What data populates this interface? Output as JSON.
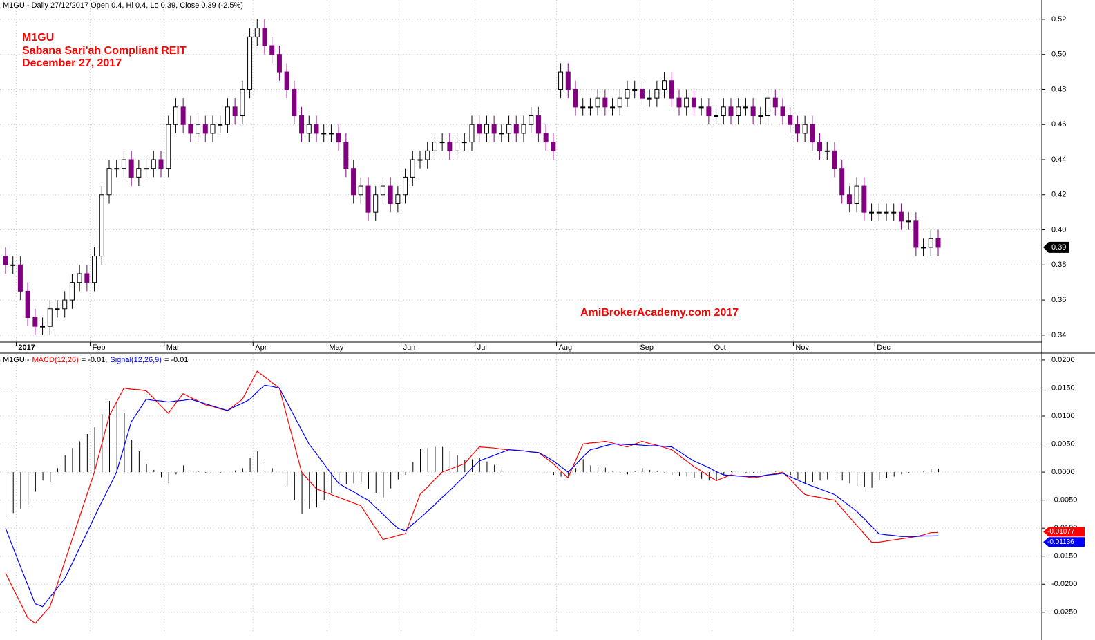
{
  "chart_data": [
    {
      "type": "candlestick",
      "header": "M1GU - Daily 27/12/2017 Open 0.4, Hi 0.4, Lo 0.39, Close 0.39 (-2.5%)",
      "title_lines": [
        "M1GU",
        "Sabana Sari'ah Compliant REIT",
        "December 27, 2017"
      ],
      "annotation": "AmiBrokerAcademy.com  2017",
      "up_color": "#ffffff",
      "down_color": "#800080",
      "grid": true,
      "ylim": [
        0.336,
        0.531
      ],
      "yticks": [
        0.34,
        0.36,
        0.38,
        {
          "value": 0.4,
          "label": "0.40"
        },
        0.42,
        0.44,
        0.46,
        0.48,
        {
          "value": 0.5,
          "label": "0.50"
        },
        0.52
      ],
      "categories": [
        null,
        null,
        "2017",
        null,
        null,
        null,
        null,
        null,
        null,
        null,
        null,
        null,
        "Feb",
        null,
        null,
        null,
        null,
        null,
        null,
        null,
        null,
        null,
        "Mar",
        null,
        null,
        null,
        null,
        null,
        null,
        null,
        null,
        null,
        null,
        null,
        "Apr",
        null,
        null,
        null,
        null,
        null,
        null,
        null,
        null,
        null,
        "May",
        null,
        null,
        null,
        null,
        null,
        null,
        null,
        null,
        null,
        "Jun",
        null,
        null,
        null,
        null,
        null,
        null,
        null,
        null,
        null,
        "Jul",
        null,
        null,
        null,
        null,
        null,
        null,
        null,
        null,
        null,
        null,
        "Aug",
        null,
        null,
        null,
        null,
        null,
        null,
        null,
        null,
        null,
        null,
        "Sep",
        null,
        null,
        null,
        null,
        null,
        null,
        null,
        null,
        null,
        "Oct",
        null,
        null,
        null,
        null,
        null,
        null,
        null,
        null,
        null,
        null,
        "Nov",
        null,
        null,
        null,
        null,
        null,
        null,
        null,
        null,
        null,
        null,
        "Dec",
        null,
        null,
        null,
        null,
        null,
        null,
        null,
        null
      ],
      "open": [
        0.385,
        0.38,
        0.38,
        0.365,
        0.35,
        0.345,
        0.345,
        0.355,
        0.355,
        0.36,
        0.37,
        0.375,
        0.37,
        0.385,
        0.42,
        0.435,
        0.435,
        0.44,
        0.43,
        0.435,
        0.435,
        0.44,
        0.435,
        0.46,
        0.47,
        0.46,
        0.455,
        0.46,
        0.455,
        0.46,
        0.46,
        0.47,
        0.465,
        0.48,
        0.51,
        0.515,
        0.505,
        0.5,
        0.49,
        0.48,
        0.465,
        0.455,
        0.46,
        0.455,
        0.455,
        0.455,
        0.45,
        0.435,
        0.42,
        0.425,
        0.41,
        0.42,
        0.425,
        0.415,
        0.42,
        0.43,
        0.44,
        0.44,
        0.445,
        0.45,
        0.45,
        0.445,
        0.45,
        0.45,
        0.46,
        0.455,
        0.46,
        0.455,
        0.455,
        0.46,
        0.455,
        0.46,
        0.465,
        0.455,
        0.45,
        0.48,
        0.49,
        0.48,
        0.47,
        0.47,
        0.47,
        0.475,
        0.47,
        0.47,
        0.475,
        0.48,
        0.48,
        0.475,
        0.475,
        0.48,
        0.485,
        0.475,
        0.47,
        0.475,
        0.47,
        0.47,
        0.465,
        0.465,
        0.47,
        0.465,
        0.47,
        0.47,
        0.465,
        0.465,
        0.475,
        0.47,
        0.465,
        0.46,
        0.455,
        0.46,
        0.45,
        0.445,
        0.445,
        0.435,
        0.42,
        0.415,
        0.425,
        0.41,
        0.41,
        0.41,
        0.41,
        0.41,
        0.405,
        0.405,
        0.39,
        0.39,
        0.395
      ],
      "high": [
        0.39,
        0.385,
        0.385,
        0.37,
        0.355,
        0.35,
        0.36,
        0.36,
        0.365,
        0.375,
        0.38,
        0.38,
        0.39,
        0.425,
        0.44,
        0.44,
        0.445,
        0.445,
        0.44,
        0.44,
        0.445,
        0.445,
        0.465,
        0.475,
        0.475,
        0.465,
        0.465,
        0.465,
        0.465,
        0.465,
        0.475,
        0.475,
        0.485,
        0.515,
        0.52,
        0.52,
        0.51,
        0.505,
        0.495,
        0.485,
        0.47,
        0.465,
        0.465,
        0.46,
        0.46,
        0.46,
        0.455,
        0.44,
        0.43,
        0.43,
        0.425,
        0.43,
        0.43,
        0.425,
        0.435,
        0.445,
        0.445,
        0.45,
        0.455,
        0.455,
        0.455,
        0.455,
        0.455,
        0.465,
        0.465,
        0.465,
        0.465,
        0.46,
        0.465,
        0.465,
        0.465,
        0.47,
        0.47,
        0.46,
        0.455,
        0.495,
        0.495,
        0.485,
        0.475,
        0.475,
        0.48,
        0.48,
        0.475,
        0.48,
        0.485,
        0.485,
        0.485,
        0.48,
        0.485,
        0.49,
        0.49,
        0.48,
        0.48,
        0.48,
        0.475,
        0.475,
        0.47,
        0.475,
        0.475,
        0.475,
        0.475,
        0.475,
        0.47,
        0.48,
        0.48,
        0.475,
        0.47,
        0.465,
        0.465,
        0.465,
        0.455,
        0.45,
        0.45,
        0.44,
        0.425,
        0.43,
        0.43,
        0.415,
        0.415,
        0.415,
        0.415,
        0.415,
        0.41,
        0.41,
        0.395,
        0.4,
        0.4
      ],
      "low": [
        0.375,
        0.375,
        0.36,
        0.345,
        0.34,
        0.34,
        0.34,
        0.35,
        0.35,
        0.355,
        0.365,
        0.365,
        0.365,
        0.38,
        0.415,
        0.43,
        0.43,
        0.425,
        0.425,
        0.43,
        0.43,
        0.43,
        0.43,
        0.455,
        0.455,
        0.45,
        0.45,
        0.45,
        0.45,
        0.455,
        0.455,
        0.46,
        0.46,
        0.475,
        0.505,
        0.5,
        0.495,
        0.485,
        0.475,
        0.46,
        0.45,
        0.45,
        0.45,
        0.45,
        0.45,
        0.445,
        0.43,
        0.415,
        0.415,
        0.405,
        0.405,
        0.415,
        0.41,
        0.41,
        0.415,
        0.425,
        0.435,
        0.435,
        0.44,
        0.445,
        0.44,
        0.44,
        0.445,
        0.445,
        0.45,
        0.45,
        0.45,
        0.45,
        0.45,
        0.45,
        0.45,
        0.455,
        0.45,
        0.445,
        0.44,
        0.475,
        0.475,
        0.465,
        0.465,
        0.465,
        0.465,
        0.465,
        0.465,
        0.465,
        0.47,
        0.475,
        0.47,
        0.47,
        0.47,
        0.475,
        0.47,
        0.465,
        0.465,
        0.465,
        0.465,
        0.46,
        0.46,
        0.46,
        0.46,
        0.46,
        0.465,
        0.46,
        0.46,
        0.46,
        0.465,
        0.46,
        0.455,
        0.45,
        0.45,
        0.445,
        0.44,
        0.44,
        0.43,
        0.415,
        0.41,
        0.41,
        0.405,
        0.405,
        0.405,
        0.405,
        0.405,
        0.4,
        0.4,
        0.385,
        0.385,
        0.385,
        0.385
      ],
      "close": [
        0.38,
        0.38,
        0.365,
        0.35,
        0.345,
        0.345,
        0.355,
        0.355,
        0.36,
        0.37,
        0.375,
        0.37,
        0.385,
        0.42,
        0.435,
        0.435,
        0.44,
        0.43,
        0.435,
        0.435,
        0.44,
        0.435,
        0.46,
        0.47,
        0.46,
        0.455,
        0.46,
        0.455,
        0.46,
        0.46,
        0.47,
        0.465,
        0.48,
        0.51,
        0.515,
        0.505,
        0.5,
        0.49,
        0.48,
        0.465,
        0.455,
        0.46,
        0.455,
        0.455,
        0.455,
        0.45,
        0.435,
        0.42,
        0.425,
        0.41,
        0.42,
        0.425,
        0.415,
        0.42,
        0.43,
        0.44,
        0.44,
        0.445,
        0.45,
        0.45,
        0.445,
        0.45,
        0.45,
        0.46,
        0.455,
        0.46,
        0.455,
        0.455,
        0.46,
        0.455,
        0.46,
        0.465,
        0.455,
        0.45,
        0.445,
        0.49,
        0.48,
        0.47,
        0.47,
        0.47,
        0.475,
        0.47,
        0.47,
        0.475,
        0.48,
        0.48,
        0.475,
        0.475,
        0.48,
        0.485,
        0.475,
        0.47,
        0.475,
        0.47,
        0.47,
        0.465,
        0.465,
        0.47,
        0.465,
        0.47,
        0.47,
        0.465,
        0.465,
        0.475,
        0.47,
        0.465,
        0.46,
        0.455,
        0.46,
        0.45,
        0.445,
        0.445,
        0.435,
        0.42,
        0.415,
        0.425,
        0.41,
        0.41,
        0.41,
        0.41,
        0.41,
        0.405,
        0.405,
        0.39,
        0.39,
        0.395,
        0.39
      ]
    },
    {
      "type": "line",
      "header_prefix": "M1GU -",
      "macd_text": "= -0.01,",
      "signal_text": "= -0.01",
      "grid": true,
      "ylim": [
        -0.0286,
        0.0211
      ],
      "yticks": [
        {
          "value": -0.025,
          "label": "-0.0250"
        },
        {
          "value": -0.02,
          "label": "-0.0200"
        },
        {
          "value": -0.015,
          "label": "-0.0150"
        },
        {
          "value": -0.01,
          "label": "-0.0100"
        },
        {
          "value": -0.005,
          "label": "-0.0050"
        },
        {
          "value": 0,
          "label": "0.0000"
        },
        {
          "value": 0.005,
          "label": "0.0050"
        },
        {
          "value": 0.01,
          "label": "0.0100"
        },
        {
          "value": 0.015,
          "label": "0.0150"
        },
        {
          "value": 0.02,
          "label": "0.0200"
        }
      ],
      "series": [
        {
          "name": "MACD(12,26)",
          "color": "#ff0000",
          "values": [
            -0.018,
            -0.0207,
            -0.0233,
            -0.026,
            -0.027,
            -0.0255,
            -0.024,
            -0.02,
            -0.016,
            -0.012,
            -0.008,
            -0.004,
            0.0,
            0.005,
            0.01,
            0.0125,
            0.015,
            0.0148,
            0.0147,
            0.0145,
            0.0132,
            0.0118,
            0.0105,
            0.0123,
            0.014,
            0.0133,
            0.0127,
            0.012,
            0.0117,
            0.0113,
            0.011,
            0.012,
            0.013,
            0.0155,
            0.018,
            0.017,
            0.016,
            0.015,
            0.01,
            0.005,
            0.0,
            -0.0015,
            -0.003,
            -0.0035,
            -0.004,
            -0.0045,
            -0.005,
            -0.0055,
            -0.006,
            -0.008,
            -0.01,
            -0.012,
            -0.0117,
            -0.0113,
            -0.011,
            -0.0075,
            -0.004,
            -0.0027,
            -0.0013,
            0.0,
            0.0005,
            0.001,
            0.0015,
            0.003,
            0.0045,
            0.0044,
            0.0043,
            0.0041,
            0.004,
            0.0039,
            0.0038,
            0.0036,
            0.0035,
            0.0025,
            0.0015,
            0.0002,
            -0.001,
            0.002,
            0.005,
            0.0052,
            0.0053,
            0.0055,
            0.0052,
            0.0048,
            0.0045,
            0.005,
            0.0055,
            0.0051,
            0.0048,
            0.0044,
            0.004,
            0.003,
            0.002,
            0.001,
            0.0002,
            -0.0007,
            -0.0015,
            -0.001,
            -0.0005,
            -0.0007,
            -0.0008,
            -0.001,
            -0.0008,
            -0.0005,
            -0.0003,
            0.0,
            -0.0013,
            -0.0027,
            -0.004,
            -0.0043,
            -0.0045,
            -0.0048,
            -0.005,
            -0.0065,
            -0.008,
            -0.0095,
            -0.011,
            -0.0125,
            -0.0125,
            -0.0123,
            -0.0121,
            -0.0119,
            -0.0117,
            -0.0115,
            -0.0112,
            -0.0108,
            -0.01077
          ]
        },
        {
          "name": "Signal(12,26,9)",
          "color": "#0000ff",
          "values": [
            -0.01,
            -0.0134,
            -0.0168,
            -0.0201,
            -0.0235,
            -0.024,
            -0.0223,
            -0.0207,
            -0.019,
            -0.0163,
            -0.0135,
            -0.0108,
            -0.008,
            -0.0053,
            -0.0027,
            0.0,
            0.0045,
            0.009,
            0.011,
            0.013,
            0.0128,
            0.0127,
            0.0125,
            0.0127,
            0.0128,
            0.013,
            0.0126,
            0.0122,
            0.0118,
            0.0114,
            0.011,
            0.0117,
            0.0123,
            0.013,
            0.0143,
            0.0155,
            0.0153,
            0.015,
            0.0125,
            0.01,
            0.0075,
            0.005,
            0.0033,
            0.0015,
            -0.0003,
            -0.002,
            -0.0028,
            -0.0035,
            -0.0043,
            -0.005,
            -0.0063,
            -0.0075,
            -0.0088,
            -0.01,
            -0.0105,
            -0.0093,
            -0.0082,
            -0.007,
            -0.0058,
            -0.0045,
            -0.0033,
            -0.002,
            -0.0007,
            0.0007,
            0.002,
            0.0025,
            0.003,
            0.0035,
            0.004,
            0.0039,
            0.0038,
            0.0036,
            0.0035,
            0.0028,
            0.002,
            0.001,
            0.0,
            0.0013,
            0.0027,
            0.004,
            0.0043,
            0.0047,
            0.005,
            0.005,
            0.0049,
            0.0049,
            0.0048,
            0.0047,
            0.0047,
            0.0046,
            0.0045,
            0.0037,
            0.0028,
            0.002,
            0.0014,
            0.0008,
            0.0001,
            -0.0005,
            -0.0006,
            -0.0007,
            -0.0007,
            -0.0008,
            -0.0007,
            -0.0005,
            -0.0004,
            -0.0002,
            -0.0008,
            -0.0014,
            -0.002,
            -0.0025,
            -0.003,
            -0.0035,
            -0.004,
            -0.005,
            -0.006,
            -0.007,
            -0.0083,
            -0.0097,
            -0.011,
            -0.0112,
            -0.0113,
            -0.0115,
            -0.0115,
            -0.0115,
            -0.0114,
            -0.0114,
            -0.01136
          ]
        },
        {
          "type": "bar",
          "color": "#000000",
          "values": [
            -0.008,
            -0.0073,
            -0.0065,
            -0.0059,
            -0.0035,
            -0.0015,
            -0.0017,
            0.0007,
            0.003,
            0.0043,
            0.0055,
            0.0068,
            0.008,
            0.0103,
            0.0127,
            0.0125,
            0.0105,
            0.0058,
            0.0037,
            0.0015,
            0.0004,
            -0.0009,
            -0.002,
            -0.0004,
            0.0012,
            0.0003,
            0.0001,
            -0.0002,
            -0.0001,
            -0.0001,
            0.0,
            0.0003,
            0.0007,
            0.0025,
            0.0037,
            0.0015,
            0.0007,
            0.0,
            -0.0025,
            -0.005,
            -0.0075,
            -0.0065,
            -0.0063,
            -0.005,
            -0.0037,
            -0.0025,
            -0.0022,
            -0.002,
            -0.0017,
            -0.003,
            -0.0037,
            -0.0045,
            -0.0029,
            -0.0013,
            -0.0005,
            0.0018,
            0.0042,
            0.0043,
            0.0045,
            0.0045,
            0.0038,
            0.003,
            0.0022,
            0.0023,
            0.0025,
            0.0019,
            0.0013,
            0.0006,
            0.0,
            0.0,
            0.0,
            0.0,
            0.0,
            -0.0003,
            -0.0005,
            -0.0008,
            -0.001,
            0.0007,
            0.0023,
            0.0012,
            0.001,
            0.0008,
            0.0002,
            -0.0002,
            -0.0004,
            0.0001,
            0.0007,
            0.0004,
            0.0001,
            -0.0002,
            -0.0005,
            -0.0007,
            -0.0008,
            -0.001,
            -0.0012,
            -0.0015,
            -0.0016,
            -0.0005,
            0.0001,
            0.0,
            -0.0001,
            -0.0002,
            -0.0001,
            0.0,
            0.0001,
            0.0002,
            -0.0005,
            -0.0013,
            -0.002,
            -0.0018,
            -0.0015,
            -0.0013,
            -0.001,
            -0.0015,
            -0.002,
            -0.0025,
            -0.0027,
            -0.0028,
            -0.0015,
            -0.0011,
            -0.0008,
            -0.0004,
            -0.0002,
            0.0,
            0.0002,
            0.0006,
            0.0006
          ]
        }
      ]
    }
  ]
}
